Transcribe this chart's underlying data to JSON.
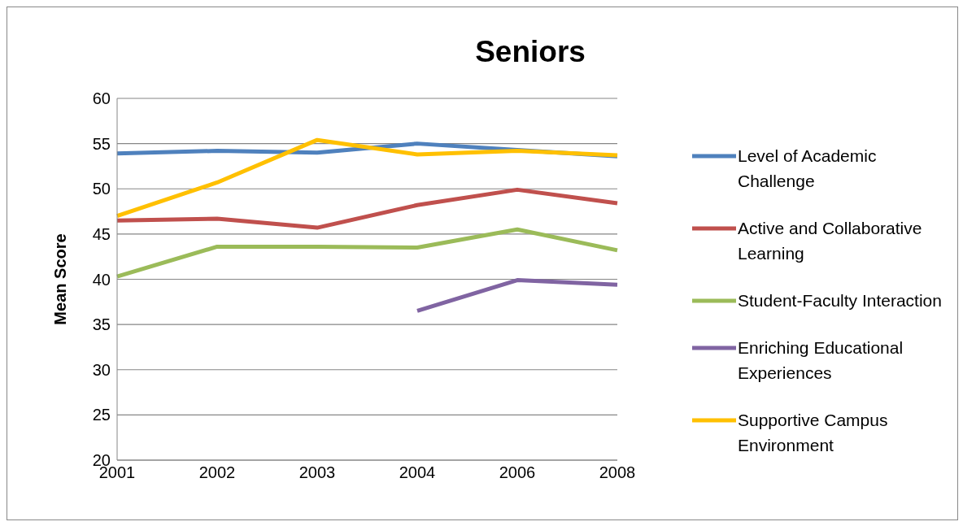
{
  "chart_data": {
    "type": "line",
    "title": "Seniors",
    "ylabel": "Mean Score",
    "categories": [
      "2001",
      "2002",
      "2003",
      "2004",
      "2006",
      "2008"
    ],
    "series": [
      {
        "name": "Level of Academic Challenge",
        "color": "#4f81bd",
        "values": [
          53.9,
          54.2,
          54.0,
          55.0,
          54.3,
          53.6
        ]
      },
      {
        "name": "Active and Collaborative Learning",
        "color": "#c0504d",
        "values": [
          46.5,
          46.7,
          45.7,
          48.2,
          49.9,
          48.4
        ]
      },
      {
        "name": "Student-Faculty Interaction",
        "color": "#9bbb59",
        "values": [
          40.3,
          43.6,
          43.6,
          43.5,
          45.5,
          43.2
        ]
      },
      {
        "name": "Enriching Educational Experiences",
        "color": "#8064a2",
        "values": [
          null,
          null,
          null,
          36.5,
          39.9,
          39.4
        ]
      },
      {
        "name": "Supportive Campus Environment",
        "color": "#ffc000",
        "values": [
          47.0,
          50.7,
          55.4,
          53.8,
          54.2,
          53.7
        ]
      }
    ],
    "ylim": [
      20,
      60
    ],
    "yticks": [
      20,
      25,
      30,
      35,
      40,
      45,
      50,
      55,
      60
    ],
    "grid": "y",
    "legend": "right",
    "marker": "none",
    "line_style": "solid"
  }
}
